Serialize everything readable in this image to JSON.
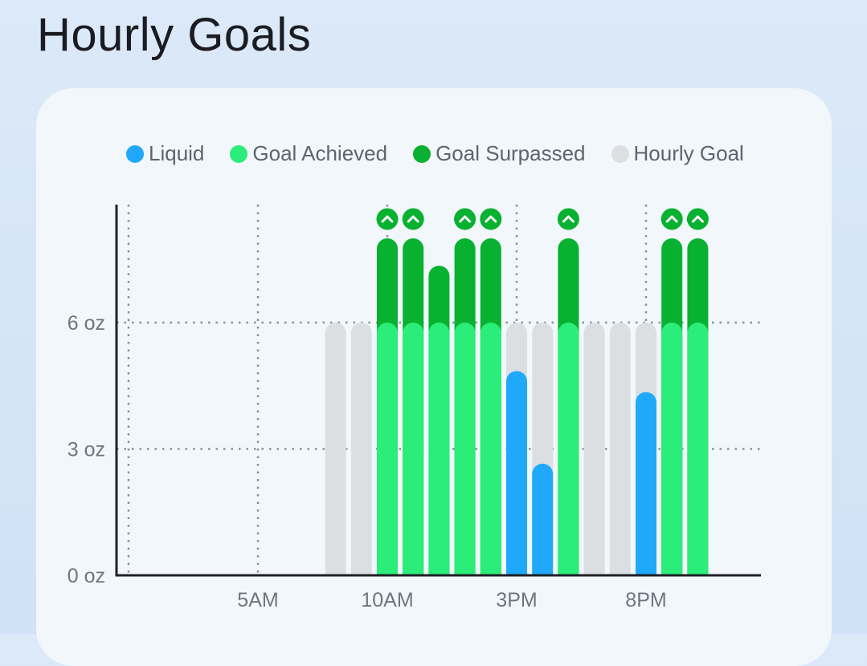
{
  "page": {
    "title": "Hourly Goals"
  },
  "colors": {
    "liquid": "#20a9fb",
    "goal_achieved": "#2bed79",
    "goal_surpassed": "#08b12f",
    "hourly_goal": "#dcdfe2",
    "grid": "#8a8f96",
    "axis": "#1f2024"
  },
  "legend": [
    {
      "key": "liquid",
      "label": "Liquid"
    },
    {
      "key": "goal_achieved",
      "label": "Goal Achieved"
    },
    {
      "key": "goal_surpassed",
      "label": "Goal Surpassed"
    },
    {
      "key": "hourly_goal",
      "label": "Hourly Goal"
    }
  ],
  "chart_data": {
    "type": "bar",
    "title": "Hourly Goals",
    "y_unit": "oz",
    "ylim": [
      0,
      8
    ],
    "yticks": [
      {
        "value": 0,
        "label": "0 oz"
      },
      {
        "value": 3,
        "label": "3 oz"
      },
      {
        "value": 6,
        "label": "6 oz"
      }
    ],
    "xlim": [
      0,
      25
    ],
    "xticks": [
      {
        "hour": 5,
        "label": "5AM"
      },
      {
        "hour": 10,
        "label": "10AM"
      },
      {
        "hour": 15,
        "label": "3PM"
      },
      {
        "hour": 20,
        "label": "8PM"
      }
    ],
    "vertical_gridlines_hours": [
      0,
      5,
      10,
      15,
      20
    ],
    "hourly_goal_oz": 6,
    "grid": true,
    "legend_position": "top",
    "hours": [
      {
        "hour": 8,
        "goal": 6,
        "consumed": 0
      },
      {
        "hour": 9,
        "goal": 6,
        "consumed": 0
      },
      {
        "hour": 10,
        "goal": 6,
        "consumed": 8
      },
      {
        "hour": 11,
        "goal": 6,
        "consumed": 8
      },
      {
        "hour": 12,
        "goal": 6,
        "consumed": 7.35
      },
      {
        "hour": 13,
        "goal": 6,
        "consumed": 8
      },
      {
        "hour": 14,
        "goal": 6,
        "consumed": 8
      },
      {
        "hour": 15,
        "goal": 6,
        "consumed": 4.85
      },
      {
        "hour": 16,
        "goal": 6,
        "consumed": 2.65
      },
      {
        "hour": 17,
        "goal": 6,
        "consumed": 8
      },
      {
        "hour": 18,
        "goal": 6,
        "consumed": 0
      },
      {
        "hour": 19,
        "goal": 6,
        "consumed": 0
      },
      {
        "hour": 20,
        "goal": 6,
        "consumed": 4.35
      },
      {
        "hour": 21,
        "goal": 6,
        "consumed": 8
      },
      {
        "hour": 22,
        "goal": 6,
        "consumed": 8
      }
    ],
    "overflow_marker_hours": [
      10,
      11,
      13,
      14,
      17,
      21,
      22
    ]
  }
}
